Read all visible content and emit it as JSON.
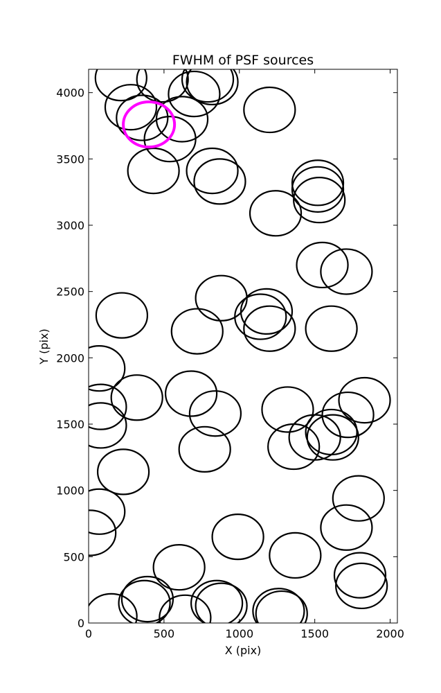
{
  "chart_data": {
    "type": "scatter",
    "title": "FWHM of PSF sources",
    "xlabel": "X (pix)",
    "ylabel": "Y (pix)",
    "xlim": [
      0,
      2048
    ],
    "ylim": [
      0,
      4176
    ],
    "xticks": [
      0,
      500,
      1000,
      1500,
      2000
    ],
    "yticks": [
      0,
      500,
      1000,
      1500,
      2000,
      2500,
      3000,
      3500,
      4000
    ],
    "grid": false,
    "legend": "none",
    "marker": "open circle",
    "marker_radius_pix": 170,
    "colors": {
      "default": "#000000",
      "highlight": "#ff00ff"
    },
    "series": [
      {
        "points": [
          [
            215,
            4110
          ],
          [
            280,
            3890
          ],
          [
            355,
            3810
          ],
          [
            490,
            4100
          ],
          [
            620,
            3800
          ],
          [
            700,
            3990
          ],
          [
            820,
            4080
          ],
          [
            790,
            4100
          ],
          [
            540,
            3650
          ],
          [
            430,
            3410
          ],
          [
            1200,
            3870
          ],
          [
            1240,
            3090
          ],
          [
            1520,
            3320
          ],
          [
            1520,
            3270
          ],
          [
            1530,
            3190
          ],
          [
            820,
            3410
          ],
          [
            870,
            3330
          ],
          [
            1550,
            2700
          ],
          [
            1710,
            2650
          ],
          [
            1180,
            2350
          ],
          [
            1140,
            2310
          ],
          [
            1200,
            2220
          ],
          [
            880,
            2450
          ],
          [
            1610,
            2220
          ],
          [
            220,
            2320
          ],
          [
            720,
            2200
          ],
          [
            70,
            1920
          ],
          [
            80,
            1630
          ],
          [
            320,
            1700
          ],
          [
            680,
            1730
          ],
          [
            840,
            1580
          ],
          [
            1320,
            1610
          ],
          [
            1830,
            1680
          ],
          [
            1720,
            1570
          ],
          [
            1610,
            1440
          ],
          [
            1620,
            1400
          ],
          [
            1500,
            1400
          ],
          [
            1360,
            1330
          ],
          [
            80,
            1490
          ],
          [
            230,
            1140
          ],
          [
            770,
            1310
          ],
          [
            1790,
            940
          ],
          [
            70,
            840
          ],
          [
            10,
            680
          ],
          [
            990,
            650
          ],
          [
            1370,
            510
          ],
          [
            1710,
            720
          ],
          [
            600,
            420
          ],
          [
            1800,
            360
          ],
          [
            1810,
            280
          ],
          [
            390,
            180
          ],
          [
            370,
            150
          ],
          [
            850,
            150
          ],
          [
            880,
            130
          ],
          [
            1260,
            90
          ],
          [
            1280,
            70
          ],
          [
            640,
            40
          ],
          [
            150,
            50
          ]
        ]
      },
      {
        "highlight": true,
        "points": [
          [
            400,
            3760
          ]
        ]
      }
    ]
  }
}
